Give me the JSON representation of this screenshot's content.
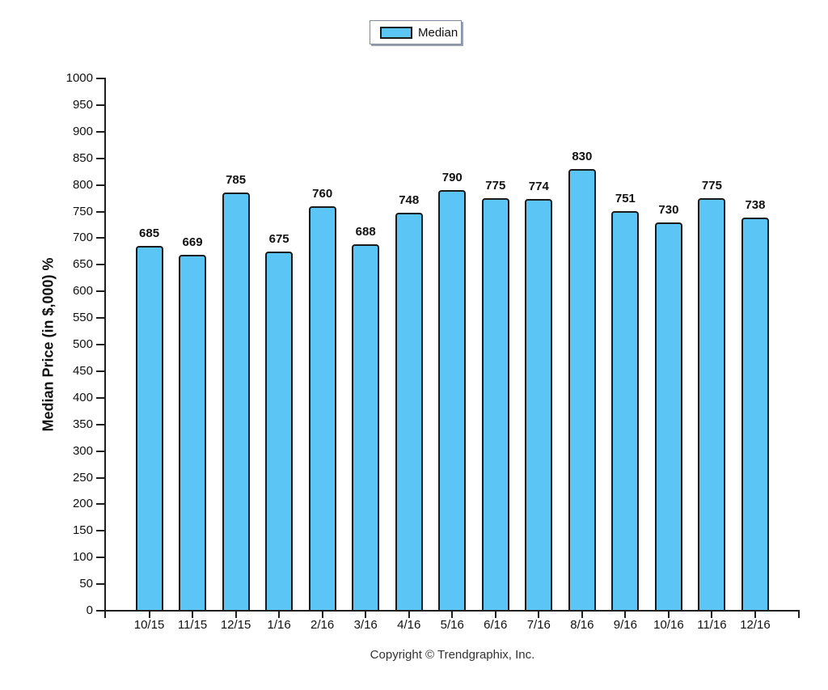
{
  "chart_data": {
    "type": "bar",
    "title": "",
    "legend": [
      "Median"
    ],
    "legend_position": "top-center",
    "categories": [
      "10/15",
      "11/15",
      "12/15",
      "1/16",
      "2/16",
      "3/16",
      "4/16",
      "5/16",
      "6/16",
      "7/16",
      "8/16",
      "9/16",
      "10/16",
      "11/16",
      "12/16"
    ],
    "series": [
      {
        "name": "Median",
        "values": [
          685,
          669,
          785,
          675,
          760,
          688,
          748,
          790,
          775,
          774,
          830,
          751,
          730,
          775,
          738
        ]
      }
    ],
    "xlabel": "",
    "ylabel": "Median Price (in $,000) %",
    "ylim": [
      0,
      1000
    ],
    "ytick_step": 50,
    "grid": false,
    "bar_color": "#5BC6F5",
    "bar_border_color": "#1a1a1a",
    "axis_color": "#1f1f1f"
  },
  "footer": {
    "copyright": "Copyright © Trendgraphix, Inc."
  }
}
